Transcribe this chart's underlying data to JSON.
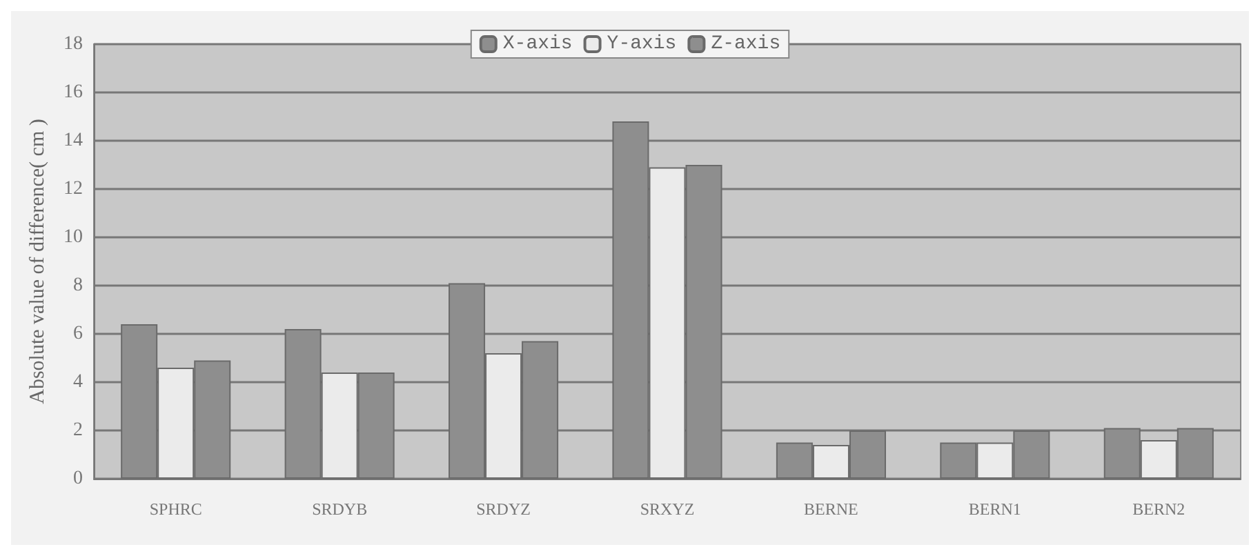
{
  "chart_data": {
    "type": "bar",
    "ylabel": "Absolute value of difference( cm )",
    "categories": [
      "SPHRC",
      "SRDYB",
      "SRDYZ",
      "SRXYZ",
      "BERNE",
      "BERN1",
      "BERN2"
    ],
    "series": [
      {
        "name": "X-axis",
        "color": "#8e8e8e",
        "values": [
          6.4,
          6.2,
          8.1,
          14.8,
          1.5,
          1.5,
          2.1
        ]
      },
      {
        "name": "Y-axis",
        "color": "#ebebeb",
        "values": [
          4.6,
          4.4,
          5.2,
          12.9,
          1.4,
          1.5,
          1.6
        ]
      },
      {
        "name": "Z-axis",
        "color": "#8e8e8e",
        "values": [
          4.9,
          4.4,
          5.7,
          13.0,
          2.0,
          2.0,
          2.1
        ]
      }
    ],
    "ylim": [
      0,
      18
    ],
    "yticks": [
      0,
      2,
      4,
      6,
      8,
      10,
      12,
      14,
      16,
      18
    ],
    "grid": "y",
    "legend": "top"
  }
}
